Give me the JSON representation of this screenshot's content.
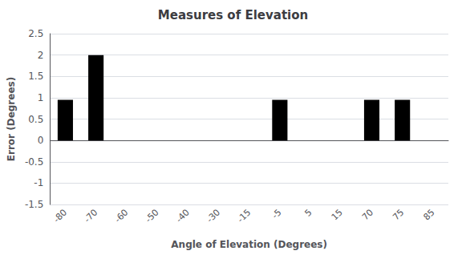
{
  "chart_data": {
    "type": "bar",
    "title": "Measures of Elevation",
    "xlabel": "Angle of Elevation (Degrees)",
    "ylabel": "Error (Degrees)",
    "categories": [
      "-80",
      "-70",
      "-60",
      "-50",
      "-40",
      "-30",
      "-15",
      "-5",
      "5",
      "15",
      "70",
      "75",
      "85"
    ],
    "values": [
      0.95,
      2.0,
      0.0,
      0.0,
      0.0,
      0.0,
      0.0,
      0.95,
      0.0,
      0.0,
      0.95,
      0.95,
      0.0
    ],
    "color": "#000000",
    "ylim": [
      -1.5,
      2.5
    ],
    "yticks": [
      -1.5,
      -1.0,
      -0.5,
      0.0,
      0.5,
      1.0,
      1.5,
      2.0,
      2.5
    ],
    "grid": true
  }
}
